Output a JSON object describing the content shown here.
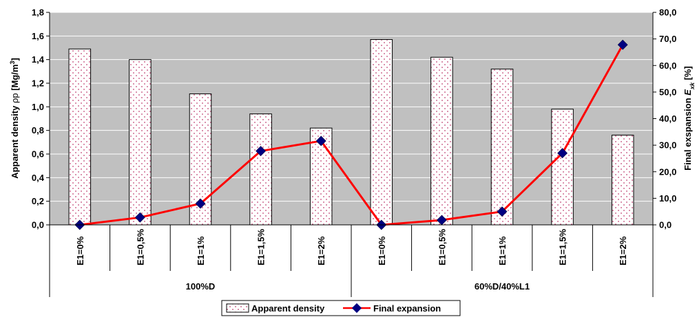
{
  "chart_data": {
    "type": "bar",
    "categories": [
      "E1=0%",
      "E1=0,5%",
      "E1=1%",
      "E1=1,5%",
      "E1=2%",
      "E1=0%",
      "E1=0,5%",
      "E1=1%",
      "E1=1,5%",
      "E1=2%"
    ],
    "groups": [
      {
        "label": "100%D",
        "span": 5
      },
      {
        "label": "60%D/40%L1",
        "span": 5
      }
    ],
    "series": [
      {
        "name": "Apparent density",
        "type": "bar",
        "axis": "left",
        "values": [
          1.49,
          1.4,
          1.11,
          0.94,
          0.82,
          1.57,
          1.42,
          1.32,
          0.98,
          0.76
        ]
      },
      {
        "name": "Final expansion",
        "type": "line",
        "axis": "right",
        "values": [
          0.0,
          2.8,
          8.0,
          27.8,
          31.6,
          0.0,
          1.8,
          5.0,
          27.0,
          67.8
        ]
      }
    ],
    "ylabel_left": "Apparent density ρp [Mg/m3]",
    "ylabel_left_parts": {
      "main": "Apparent density ",
      "symbol": "ρp",
      "unit_open": " [Mg/m",
      "sup": "3",
      "unit_close": "]"
    },
    "ylabel_right": "Final exspansion Exk [%]",
    "ylabel_right_parts": {
      "main": "Final exspansion ",
      "symbol": "E",
      "sub": "xk",
      "unit": " [%]"
    },
    "ylim_left": [
      0,
      1.8
    ],
    "ylim_right": [
      0,
      80
    ],
    "left_ticks": [
      "0,0",
      "0,2",
      "0,4",
      "0,6",
      "0,8",
      "1,0",
      "1,2",
      "1,4",
      "1,6",
      "1,8"
    ],
    "right_ticks": [
      "0,0",
      "10,0",
      "20,0",
      "30,0",
      "40,0",
      "50,0",
      "60,0",
      "70,0",
      "80,0"
    ],
    "grid": "horizontal",
    "legend_position": "bottom",
    "colors": {
      "plot_bg": "#c0c0c0",
      "bar_fill": "#ffffff",
      "bar_dots": "#c04070",
      "line": "#ff0000",
      "marker": "#000080"
    }
  }
}
